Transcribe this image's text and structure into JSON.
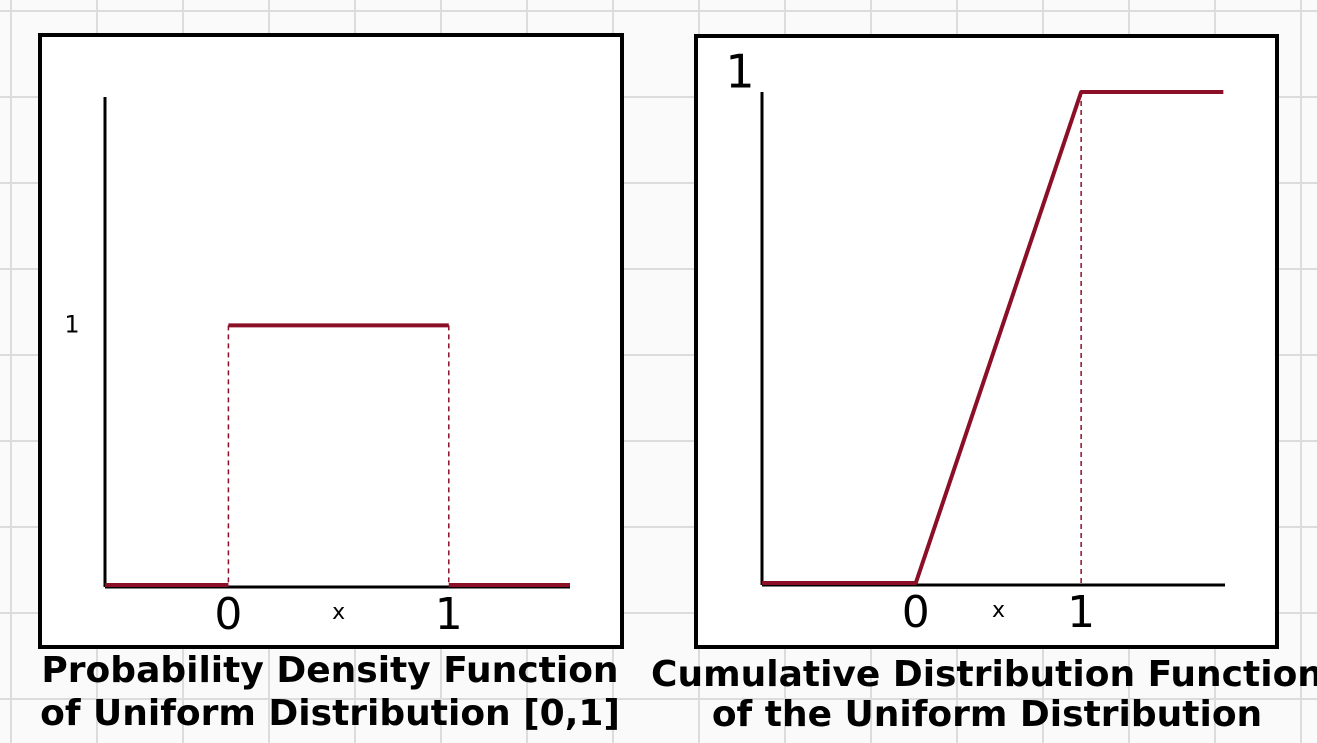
{
  "chart_data": [
    {
      "type": "line",
      "title": [
        "Probability Density Function",
        "of Uniform Distribution [0,1]"
      ],
      "xlabel": "x",
      "x": [
        -0.56,
        0,
        0,
        0,
        1,
        1,
        1,
        1.55
      ],
      "series": [
        {
          "color": "#8c0f28",
          "values": [
            0,
            0,
            null,
            1,
            1,
            null,
            0,
            0
          ]
        }
      ],
      "xlim": [
        -0.56,
        1.55
      ],
      "xticks": [
        0,
        1
      ],
      "ylim": [
        0,
        1.88
      ],
      "yticks": [
        1
      ],
      "drop_lines": true
    },
    {
      "type": "line",
      "title": [
        "Cumulative Distribution Function",
        "of the Uniform Distribution"
      ],
      "xlabel": "x",
      "x": [
        -0.93,
        0,
        1,
        1.86
      ],
      "series": [
        {
          "color": "#8c0f28",
          "values": [
            0,
            0,
            1,
            1
          ]
        }
      ],
      "xlim": [
        -0.93,
        1.87
      ],
      "xticks": [
        0,
        1
      ],
      "ylim": [
        0,
        1
      ],
      "yticks": [
        1
      ],
      "drop_lines": true
    }
  ]
}
